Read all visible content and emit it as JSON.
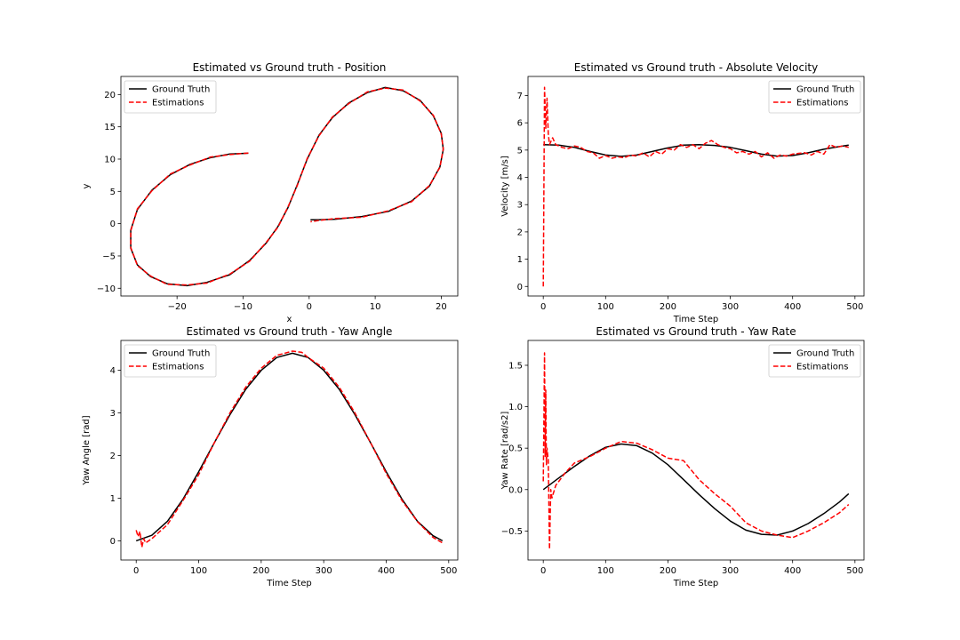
{
  "chart_data": [
    {
      "type": "line",
      "title": "Estimated vs Ground truth - Position",
      "xlabel": "x",
      "ylabel": "y",
      "xlim": [
        -28.5,
        22.5
      ],
      "ylim": [
        -11.2,
        22.8
      ],
      "xticks": [
        -20,
        -10,
        0,
        10,
        20
      ],
      "yticks": [
        -10,
        -5,
        0,
        5,
        10,
        15,
        20
      ],
      "xtick_labels": [
        "−20",
        "−10",
        "0",
        "10",
        "20"
      ],
      "ytick_labels": [
        "−10",
        "−5",
        "0",
        "5",
        "10",
        "15",
        "20"
      ],
      "legend": {
        "position": "upper-left",
        "entries": [
          "Ground Truth",
          "Estimations"
        ]
      },
      "series": [
        {
          "name": "Ground Truth",
          "color": "#000000",
          "style": "solid",
          "x": [
            -9.2,
            -12,
            -15,
            -18,
            -21,
            -23.8,
            -26,
            -27,
            -27,
            -26,
            -24,
            -21.5,
            -18.5,
            -15.5,
            -12,
            -9,
            -6.5,
            -4.7,
            -3.2,
            -1.8,
            -0.3,
            1.5,
            3.5,
            6,
            8.8,
            11.5,
            14.2,
            16.8,
            18.8,
            20,
            20.3,
            19.8,
            18.2,
            15.5,
            12,
            8,
            4,
            1.5,
            0.2
          ],
          "y": [
            10.9,
            10.8,
            10.2,
            9.2,
            7.6,
            5.2,
            2.2,
            -1,
            -3.8,
            -6.4,
            -8.2,
            -9.3,
            -9.6,
            -9.1,
            -7.9,
            -5.7,
            -3,
            -0.4,
            2.5,
            6,
            10,
            13.7,
            16.4,
            18.7,
            20.3,
            21.1,
            20.6,
            19.1,
            16.7,
            14,
            11.5,
            8.8,
            5.8,
            3.5,
            1.9,
            1.1,
            0.7,
            0.6,
            0.6
          ]
        },
        {
          "name": "Estimations",
          "color": "#ff0000",
          "style": "dashed",
          "x": [
            -9.2,
            -12,
            -15,
            -18,
            -21,
            -23.8,
            -26,
            -27,
            -27,
            -26,
            -24,
            -21.5,
            -18.5,
            -15.5,
            -12,
            -9,
            -6.5,
            -4.7,
            -3.2,
            -1.8,
            -0.3,
            1.5,
            3.5,
            6,
            8.8,
            11.5,
            14.2,
            16.8,
            18.8,
            20,
            20.3,
            19.8,
            18.2,
            15.5,
            12,
            8,
            4,
            1.5,
            0.2
          ],
          "y": [
            10.95,
            10.7,
            10.3,
            9.1,
            7.7,
            5.1,
            2.3,
            -1.1,
            -3.7,
            -6.5,
            -8.1,
            -9.4,
            -9.5,
            -9.2,
            -7.8,
            -5.8,
            -2.9,
            -0.5,
            2.6,
            5.9,
            10.1,
            13.6,
            16.5,
            18.6,
            20.4,
            21.0,
            20.7,
            19.0,
            16.8,
            13.9,
            11.6,
            8.7,
            5.9,
            3.4,
            2.0,
            1.0,
            0.8,
            0.5,
            0.3
          ]
        }
      ]
    },
    {
      "type": "line",
      "title": "Estimated vs Ground truth - Absolute Velocity",
      "xlabel": "Time Step",
      "ylabel": "Velocity [m/s]",
      "xlim": [
        -24.5,
        514.5
      ],
      "ylim": [
        -0.35,
        7.7
      ],
      "xticks": [
        0,
        100,
        200,
        300,
        400,
        500
      ],
      "yticks": [
        0,
        1,
        2,
        3,
        4,
        5,
        6,
        7
      ],
      "xtick_labels": [
        "0",
        "100",
        "200",
        "300",
        "400",
        "500"
      ],
      "ytick_labels": [
        "0",
        "1",
        "2",
        "3",
        "4",
        "5",
        "6",
        "7"
      ],
      "legend": {
        "position": "upper-right",
        "entries": [
          "Ground Truth",
          "Estimations"
        ]
      },
      "series": [
        {
          "name": "Ground Truth",
          "color": "#000000",
          "style": "solid",
          "x": [
            0,
            25,
            50,
            75,
            100,
            125,
            150,
            175,
            200,
            225,
            250,
            275,
            300,
            325,
            350,
            375,
            400,
            425,
            450,
            475,
            490
          ],
          "y": [
            5.2,
            5.18,
            5.1,
            4.95,
            4.82,
            4.77,
            4.82,
            4.95,
            5.08,
            5.18,
            5.2,
            5.17,
            5.1,
            4.98,
            4.85,
            4.78,
            4.8,
            4.9,
            5.03,
            5.13,
            5.18
          ]
        },
        {
          "name": "Estimations",
          "color": "#ff0000",
          "style": "dashed",
          "x": [
            0,
            2,
            4,
            6,
            8,
            10,
            12,
            15,
            20,
            30,
            40,
            50,
            60,
            70,
            80,
            90,
            100,
            110,
            120,
            130,
            140,
            150,
            160,
            170,
            180,
            190,
            200,
            210,
            220,
            230,
            240,
            250,
            260,
            270,
            280,
            290,
            300,
            310,
            320,
            330,
            340,
            350,
            360,
            370,
            380,
            390,
            400,
            410,
            420,
            430,
            440,
            450,
            460,
            470,
            480,
            490
          ],
          "y": [
            0,
            7.3,
            5.8,
            6.9,
            5.6,
            5.2,
            5.3,
            5.45,
            5.2,
            5.1,
            5.05,
            5.15,
            5.1,
            4.95,
            4.9,
            4.7,
            4.8,
            4.7,
            4.75,
            4.72,
            4.82,
            4.78,
            4.9,
            4.75,
            4.95,
            4.85,
            5.05,
            5.0,
            5.2,
            5.1,
            5.2,
            5.05,
            5.25,
            5.35,
            5.2,
            5.1,
            5.05,
            4.9,
            4.95,
            4.85,
            4.95,
            4.75,
            4.9,
            4.7,
            4.82,
            4.78,
            4.85,
            4.88,
            4.9,
            4.82,
            4.95,
            4.85,
            5.2,
            5.1,
            5.15,
            5.1
          ]
        }
      ]
    },
    {
      "type": "line",
      "title": "Estimated vs Ground truth - Yaw Angle",
      "xlabel": "Time Step",
      "ylabel": "Yaw Angle [rad]",
      "xlim": [
        -24.5,
        514.5
      ],
      "ylim": [
        -0.45,
        4.7
      ],
      "xticks": [
        0,
        100,
        200,
        300,
        400,
        500
      ],
      "yticks": [
        0,
        1,
        2,
        3,
        4
      ],
      "xtick_labels": [
        "0",
        "100",
        "200",
        "300",
        "400",
        "500"
      ],
      "ytick_labels": [
        "0",
        "1",
        "2",
        "3",
        "4"
      ],
      "legend": {
        "position": "upper-left",
        "entries": [
          "Ground Truth",
          "Estimations"
        ]
      },
      "series": [
        {
          "name": "Ground Truth",
          "color": "#000000",
          "style": "solid",
          "x": [
            0,
            25,
            50,
            75,
            100,
            125,
            150,
            175,
            200,
            225,
            250,
            275,
            300,
            325,
            350,
            375,
            400,
            425,
            450,
            475,
            490
          ],
          "y": [
            0,
            0.13,
            0.46,
            0.98,
            1.62,
            2.3,
            2.96,
            3.55,
            4.0,
            4.3,
            4.4,
            4.3,
            4.0,
            3.55,
            2.96,
            2.3,
            1.62,
            0.98,
            0.46,
            0.12,
            0
          ]
        },
        {
          "name": "Estimations",
          "color": "#ff0000",
          "style": "dashed",
          "x": [
            0,
            3,
            6,
            9,
            12,
            15,
            25,
            50,
            75,
            100,
            125,
            150,
            175,
            200,
            225,
            250,
            265,
            275,
            300,
            325,
            350,
            375,
            400,
            425,
            450,
            475,
            490
          ],
          "y": [
            0.25,
            0.1,
            0.22,
            -0.15,
            0.05,
            -0.05,
            0.05,
            0.38,
            0.95,
            1.55,
            2.3,
            3.0,
            3.6,
            4.05,
            4.35,
            4.45,
            4.42,
            4.3,
            4.05,
            3.6,
            3.0,
            2.3,
            1.58,
            0.95,
            0.45,
            0.08,
            -0.05
          ]
        }
      ]
    },
    {
      "type": "line",
      "title": "Estimated vs Ground truth - Yaw Rate",
      "xlabel": "Time Step",
      "ylabel": "Yaw Rate [rad/s2]",
      "xlim": [
        -24.5,
        514.5
      ],
      "ylim": [
        -0.85,
        1.8
      ],
      "xticks": [
        0,
        100,
        200,
        300,
        400,
        500
      ],
      "yticks": [
        -0.5,
        0,
        0.5,
        1,
        1.5
      ],
      "xtick_labels": [
        "0",
        "100",
        "200",
        "300",
        "400",
        "500"
      ],
      "ytick_labels": [
        "−0.5",
        "0.0",
        "0.5",
        "1.0",
        "1.5"
      ],
      "legend": {
        "position": "upper-right",
        "entries": [
          "Ground Truth",
          "Estimations"
        ]
      },
      "series": [
        {
          "name": "Ground Truth",
          "color": "#000000",
          "style": "solid",
          "x": [
            0,
            25,
            50,
            75,
            100,
            125,
            150,
            175,
            200,
            225,
            250,
            275,
            300,
            325,
            350,
            375,
            400,
            425,
            450,
            475,
            490
          ],
          "y": [
            0,
            0.14,
            0.28,
            0.41,
            0.51,
            0.55,
            0.53,
            0.44,
            0.3,
            0.12,
            -0.06,
            -0.23,
            -0.38,
            -0.49,
            -0.54,
            -0.55,
            -0.5,
            -0.41,
            -0.29,
            -0.15,
            -0.05
          ]
        },
        {
          "name": "Estimations",
          "color": "#ff0000",
          "style": "dashed",
          "x": [
            0,
            2,
            3,
            4,
            5,
            6,
            8,
            10,
            12,
            14,
            16,
            20,
            25,
            35,
            50,
            75,
            100,
            125,
            150,
            175,
            200,
            225,
            250,
            275,
            300,
            325,
            350,
            375,
            400,
            425,
            450,
            475,
            490
          ],
          "y": [
            0.1,
            1.65,
            0.4,
            1.2,
            0.3,
            0.5,
            0.35,
            -0.72,
            0.0,
            -0.1,
            -0.05,
            0.05,
            0.1,
            0.2,
            0.32,
            0.4,
            0.5,
            0.58,
            0.56,
            0.48,
            0.38,
            0.35,
            0.12,
            -0.05,
            -0.2,
            -0.4,
            -0.5,
            -0.55,
            -0.58,
            -0.5,
            -0.4,
            -0.28,
            -0.18
          ]
        }
      ]
    }
  ]
}
